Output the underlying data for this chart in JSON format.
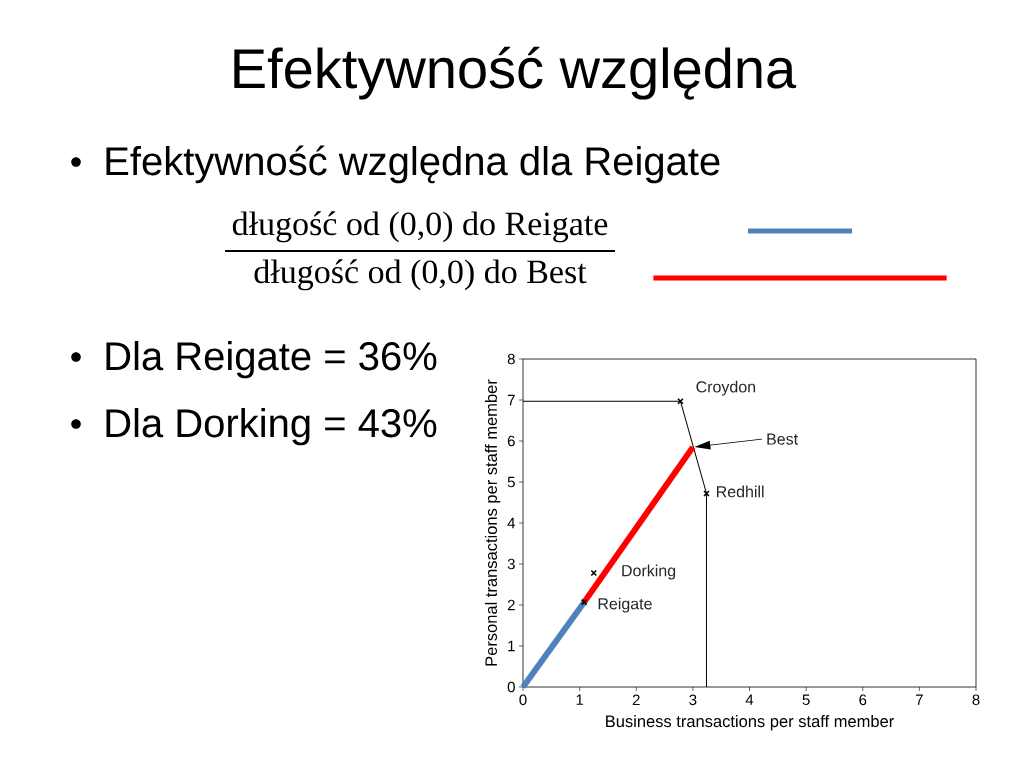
{
  "chart_data": {
    "type": "line",
    "title": "Efektywność względna",
    "annotations": [
      "Efektywność względna dla Reigate",
      "długość od (0,0) do Reigate",
      "długość od (0,0) do Best",
      "Dla Reigate = 36%",
      "Dla Dorking = 43%",
      "Best"
    ],
    "xlabel": "Business transactions per staff member",
    "ylabel": "Personal transactions per staff member",
    "xlim": [
      0,
      8
    ],
    "ylim": [
      0,
      8
    ],
    "xticks": [
      0,
      1,
      2,
      3,
      4,
      5,
      6,
      7,
      8
    ],
    "yticks": [
      0,
      1,
      2,
      3,
      4,
      5,
      6,
      7,
      8
    ],
    "marker": "none",
    "line_style": "solid",
    "series": [
      {
        "color": "#000000",
        "x": [
          0,
          2.78,
          3.24,
          3.24
        ],
        "values": [
          6.97,
          6.97,
          4.72,
          0
        ]
      },
      {
        "color": "#4f81bd",
        "x": [
          0,
          1.08
        ],
        "values": [
          0,
          2.07
        ]
      },
      {
        "color": "#ff0000",
        "x": [
          1.08,
          3.0
        ],
        "values": [
          2.07,
          5.85
        ]
      },
      {
        "type": "scatter",
        "name": "Croydon",
        "marker": "cross",
        "color": "#000000",
        "x": [
          2.78
        ],
        "values": [
          6.97
        ]
      },
      {
        "type": "scatter",
        "name": "Redhill",
        "marker": "cross",
        "color": "#000000",
        "x": [
          3.24
        ],
        "values": [
          4.72
        ]
      },
      {
        "type": "scatter",
        "name": "Dorking",
        "marker": "cross",
        "color": "#000000",
        "x": [
          1.25
        ],
        "values": [
          2.78
        ]
      },
      {
        "type": "scatter",
        "name": "Reigate",
        "marker": "cross",
        "color": "#000000",
        "x": [
          1.08
        ],
        "values": [
          2.07
        ]
      }
    ]
  }
}
